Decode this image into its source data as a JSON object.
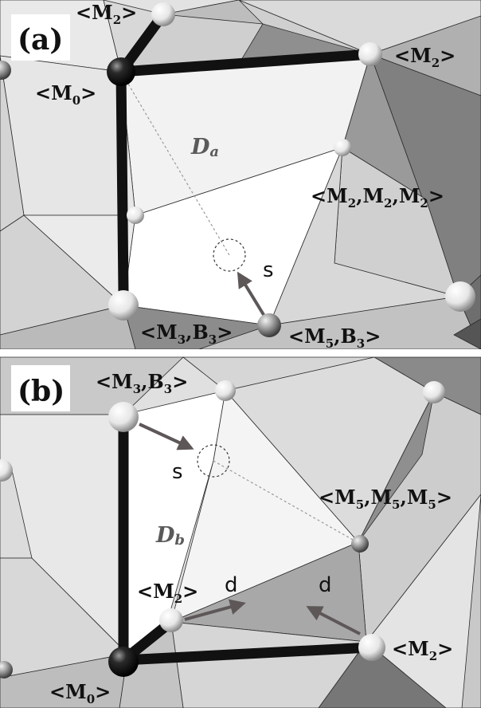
{
  "panels": [
    {
      "id": "a",
      "panel_label": "(a)",
      "domain_label": "D",
      "domain_sub": "a",
      "move_label": "s",
      "node_labels": {
        "m2_top": {
          "base": "<M",
          "sub": "2",
          "tail": ">"
        },
        "m2_right": {
          "base": "<M",
          "sub": "2",
          "tail": ">"
        },
        "m0": {
          "base": "<M",
          "sub": "0",
          "tail": ">"
        },
        "m2m2m2": {
          "t1": "<M",
          "s1": "2",
          "t2": ",M",
          "s2": "2",
          "t3": ",M",
          "s3": "2",
          "t4": ">"
        },
        "m3b3": {
          "t1": "<M",
          "s1": "3",
          "t2": ",B",
          "s2": "3",
          "t3": ">"
        },
        "m5b3": {
          "t1": "<M",
          "s1": "5",
          "t2": ",B",
          "s2": "3",
          "t3": ">"
        }
      }
    },
    {
      "id": "b",
      "panel_label": "(b)",
      "domain_label": "D",
      "domain_sub": "b",
      "move_label": "s",
      "dir_label_1": "d",
      "dir_label_2": "d",
      "node_labels": {
        "m3b3": {
          "t1": "<M",
          "s1": "3",
          "t2": ",B",
          "s2": "3",
          "t3": ">"
        },
        "m5m5m5": {
          "t1": "<M",
          "s1": "5",
          "t2": ",M",
          "s2": "5",
          "t3": ",M",
          "s3": "5",
          "t4": ">"
        },
        "m2_mid": {
          "base": "<M",
          "sub": "2",
          "tail": ">"
        },
        "m2_right": {
          "base": "<M",
          "sub": "2",
          "tail": ">"
        },
        "m0": {
          "base": "<M",
          "sub": "0",
          "tail": ">"
        }
      }
    }
  ]
}
